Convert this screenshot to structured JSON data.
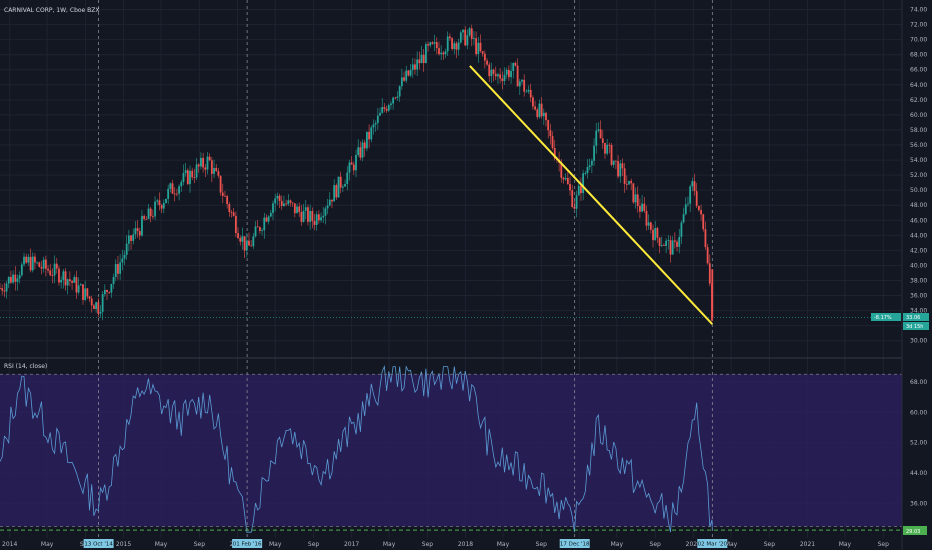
{
  "header": {
    "title": "CARNIVAL CORP, 1W, Cboe BZX"
  },
  "rsi_header": {
    "title": "RSI (14, close)"
  },
  "price_tags": {
    "change": "-8.17%",
    "price": "33.06",
    "countdown": "3d 15h"
  },
  "rsi_tag": "29.03",
  "date_tags": [
    "13 Oct '14",
    "01 Feb '16",
    "17 Dec '18",
    "02 Mar '20"
  ],
  "colors": {
    "background": "#131722",
    "up": "#26a69a",
    "down": "#ef5350",
    "trendline": "#ffeb3b",
    "rsi_line": "#5b9bd5",
    "rsi_band": "#2a1f5a",
    "price_tag": "#26a69a",
    "threshold": "#4caf50",
    "date_tag": "#7ec8e3"
  },
  "chart_data": [
    {
      "type": "candlestick",
      "title": "CARNIVAL CORP, 1W, Cboe BZX",
      "y_ticks": [
        30,
        32,
        34,
        36,
        38,
        40,
        42,
        44,
        46,
        48,
        50,
        52,
        54,
        56,
        58,
        60,
        62,
        64,
        66,
        68,
        70,
        72,
        74
      ],
      "ylim": [
        28.5,
        75
      ],
      "x_ticks": [
        "2014",
        "May",
        "Sep",
        "2015",
        "May",
        "Sep",
        "2016",
        "May",
        "Sep",
        "2017",
        "May",
        "Sep",
        "2018",
        "May",
        "Sep",
        "2019",
        "May",
        "Sep",
        "2020",
        "May",
        "Sep",
        "2021",
        "May",
        "Sep"
      ],
      "xlim": [
        "2013-12-01",
        "2021-10-31"
      ],
      "key_points": [
        {
          "date": "2013-12-01",
          "price": 37
        },
        {
          "date": "2014-03-01",
          "price": 40.5
        },
        {
          "date": "2014-07-01",
          "price": 38.5
        },
        {
          "date": "2014-10-13",
          "price": 34.5
        },
        {
          "date": "2015-02-01",
          "price": 44
        },
        {
          "date": "2015-06-01",
          "price": 50
        },
        {
          "date": "2015-10-01",
          "price": 54
        },
        {
          "date": "2016-02-01",
          "price": 42
        },
        {
          "date": "2016-05-01",
          "price": 49
        },
        {
          "date": "2016-09-01",
          "price": 46
        },
        {
          "date": "2017-01-01",
          "price": 53
        },
        {
          "date": "2017-05-01",
          "price": 62
        },
        {
          "date": "2017-09-01",
          "price": 68.5
        },
        {
          "date": "2018-01-15",
          "price": 70.5
        },
        {
          "date": "2018-04-01",
          "price": 65
        },
        {
          "date": "2018-06-01",
          "price": 66
        },
        {
          "date": "2018-09-01",
          "price": 60
        },
        {
          "date": "2018-12-17",
          "price": 48
        },
        {
          "date": "2019-03-01",
          "price": 57.5
        },
        {
          "date": "2019-06-01",
          "price": 51
        },
        {
          "date": "2019-09-01",
          "price": 44
        },
        {
          "date": "2019-11-01",
          "price": 42
        },
        {
          "date": "2020-01-01",
          "price": 51
        },
        {
          "date": "2020-02-15",
          "price": 42
        },
        {
          "date": "2020-03-02",
          "price": 33.06
        }
      ],
      "trendline": {
        "from": {
          "date": "2018-01-15",
          "price": 66.5
        },
        "to": {
          "date": "2020-03-02",
          "price": 32.2
        }
      },
      "series": [
        {
          "values": []
        }
      ]
    },
    {
      "type": "line",
      "title": "RSI (14, close)",
      "y_ticks": [
        36.0,
        44.0,
        52.0,
        60.0,
        68.0
      ],
      "ylim": [
        27.5,
        74
      ],
      "upper_band": 70,
      "lower_band": 30,
      "last_value": 29.03,
      "key_points": [
        {
          "date": "2013-12-01",
          "rsi": 45
        },
        {
          "date": "2014-02-01",
          "rsi": 68
        },
        {
          "date": "2014-06-01",
          "rsi": 52
        },
        {
          "date": "2014-10-13",
          "rsi": 35
        },
        {
          "date": "2015-03-01",
          "rsi": 67
        },
        {
          "date": "2015-07-01",
          "rsi": 58
        },
        {
          "date": "2015-10-01",
          "rsi": 64
        },
        {
          "date": "2016-02-01",
          "rsi": 29.5
        },
        {
          "date": "2016-06-01",
          "rsi": 57
        },
        {
          "date": "2016-10-01",
          "rsi": 44
        },
        {
          "date": "2017-05-01",
          "rsi": 70.5
        },
        {
          "date": "2017-09-01",
          "rsi": 68
        },
        {
          "date": "2018-01-01",
          "rsi": 70
        },
        {
          "date": "2018-04-01",
          "rsi": 48
        },
        {
          "date": "2018-09-01",
          "rsi": 42
        },
        {
          "date": "2018-12-17",
          "rsi": 30
        },
        {
          "date": "2019-03-01",
          "rsi": 56
        },
        {
          "date": "2019-08-01",
          "rsi": 38
        },
        {
          "date": "2019-11-01",
          "rsi": 32
        },
        {
          "date": "2020-01-15",
          "rsi": 60
        },
        {
          "date": "2020-03-02",
          "rsi": 29.03
        }
      ]
    }
  ]
}
